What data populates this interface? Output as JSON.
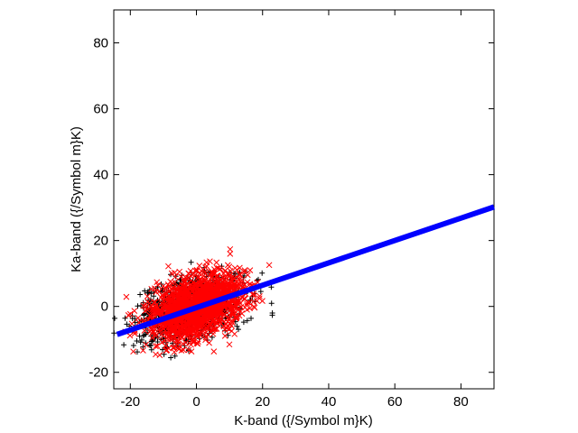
{
  "chart_data": {
    "type": "scatter",
    "title": "",
    "xlabel": "K-band ({/Symbol m}K)",
    "ylabel": "Ka-band ({/Symbol m}K)",
    "xlim": [
      -25,
      90
    ],
    "ylim": [
      -25,
      90
    ],
    "xticks": [
      -20,
      0,
      20,
      40,
      60,
      80
    ],
    "yticks": [
      -20,
      0,
      20,
      40,
      60,
      80
    ],
    "xtick_labels": [
      "-20",
      "0",
      "20",
      "40",
      "60",
      "80"
    ],
    "ytick_labels": [
      "-20",
      "0",
      "20",
      "40",
      "60",
      "80"
    ],
    "grid": false,
    "legend": "none",
    "series": [
      {
        "marker": "plus",
        "color": "#000000",
        "distribution": {
          "type": "gaussian_cloud",
          "n": 900,
          "x_mean": -2,
          "x_sd": 8,
          "y_mean": -1,
          "y_sd": 5,
          "correlation": 0.35,
          "seed": 7
        }
      },
      {
        "marker": "cross",
        "color": "#ff0000",
        "distribution": {
          "type": "gaussian_cloud",
          "n": 1600,
          "x_mean": 0,
          "x_sd": 7,
          "y_mean": 0,
          "y_sd": 5,
          "correlation": 0.4,
          "seed": 19
        }
      },
      {
        "marker": "line",
        "color": "#0000ff",
        "x": [
          -24,
          90
        ],
        "y": [
          -8.5,
          30.2
        ]
      }
    ]
  }
}
